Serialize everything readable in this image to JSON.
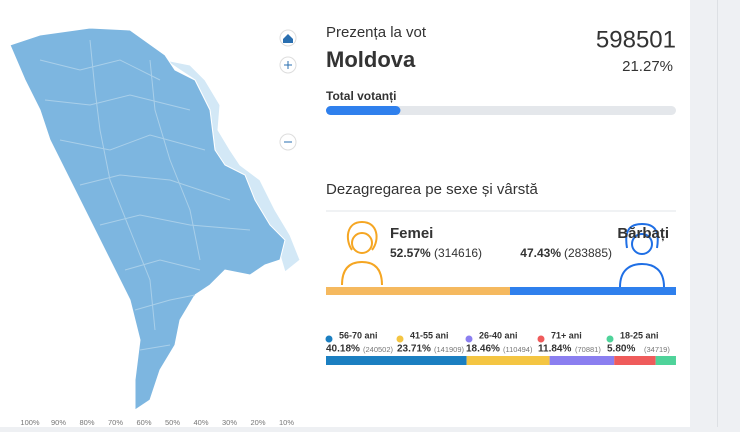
{
  "header": {
    "title": "Prezența la vot",
    "region": "Moldova",
    "total": 598501,
    "turnout": {
      "value": 21.27,
      "label": "21.27%"
    }
  },
  "total_voters": {
    "label": "Total votanți"
  },
  "breakdown": {
    "title": "Dezagregarea pe sexe și vârstă",
    "gender": [
      {
        "name": "Femei",
        "percent": {
          "value": 52.57,
          "label": "52.57%"
        },
        "count": "(314616)"
      },
      {
        "name": "Bărbați",
        "percent": {
          "value": 47.43,
          "label": "47.43%"
        },
        "count": "(283885)"
      }
    ],
    "age_groups": [
      {
        "name": "56-70 ani",
        "percent": {
          "value": 40.18,
          "label": "40.18%"
        },
        "count": "(240502)"
      },
      {
        "name": "41-55 ani",
        "percent": {
          "value": 23.71,
          "label": "23.71%"
        },
        "count": "(141909)"
      },
      {
        "name": "26-40 ani",
        "percent": {
          "value": 18.46,
          "label": "18.46%"
        },
        "count": "(110494)"
      },
      {
        "name": "71+ ani",
        "percent": {
          "value": 11.84,
          "label": "11.84%"
        },
        "count": "(70881)"
      },
      {
        "name": "18-25 ani",
        "percent": {
          "value": 5.8,
          "label": "5.80%"
        },
        "count": "(34719)"
      }
    ]
  },
  "map_legend": [
    "100%",
    "90%",
    "80%",
    "70%",
    "60%",
    "50%",
    "40%",
    "30%",
    "20%",
    "10%"
  ]
}
